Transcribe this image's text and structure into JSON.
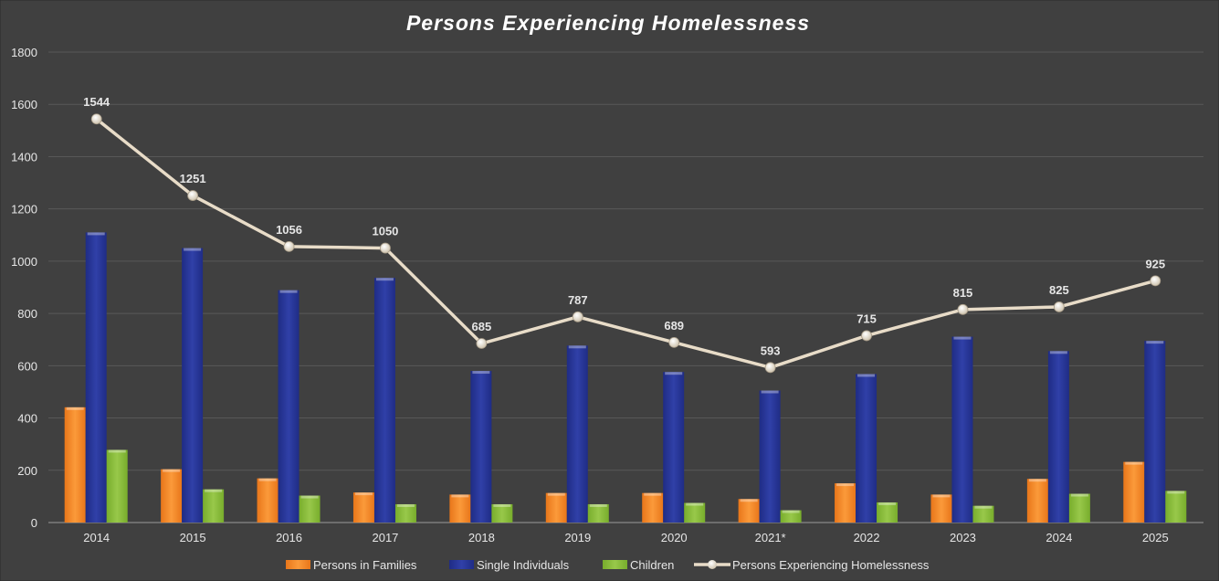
{
  "chart_data": {
    "type": "bar",
    "title": "Persons Experiencing Homelessness",
    "xlabel": "",
    "ylabel": "",
    "ylim": [
      0,
      1800
    ],
    "yticks": [
      0,
      200,
      400,
      600,
      800,
      1000,
      1200,
      1400,
      1600,
      1800
    ],
    "grid": true,
    "legend_position": "bottom",
    "categories": [
      "2014",
      "2015",
      "2016",
      "2017",
      "2018",
      "2019",
      "2020",
      "2021*",
      "2022",
      "2023",
      "2024",
      "2025"
    ],
    "series": [
      {
        "name": "Persons in Families",
        "type": "bar",
        "color": "#f58a2a",
        "values": [
          441,
          204,
          169,
          115,
          107,
          113,
          113,
          90,
          150,
          107,
          167,
          232
        ]
      },
      {
        "name": "Single Individuals",
        "type": "bar",
        "color": "#2a3a9e",
        "values": [
          1110,
          1050,
          889,
          936,
          580,
          677,
          576,
          505,
          568,
          711,
          656,
          695
        ]
      },
      {
        "name": "Children",
        "type": "bar",
        "color": "#8cc03f",
        "values": [
          278,
          127,
          103,
          70,
          70,
          70,
          75,
          47,
          77,
          64,
          110,
          121
        ]
      },
      {
        "name": "Persons Experiencing Homelessness",
        "type": "line",
        "color": "#e8dcc8",
        "values": [
          1544,
          1251,
          1056,
          1050,
          685,
          787,
          689,
          593,
          715,
          815,
          825,
          925
        ],
        "data_labels": [
          "1544",
          "1251",
          "1056",
          "1050",
          "685",
          "787",
          "689",
          "593",
          "715",
          "815",
          "825",
          "925"
        ]
      }
    ]
  }
}
